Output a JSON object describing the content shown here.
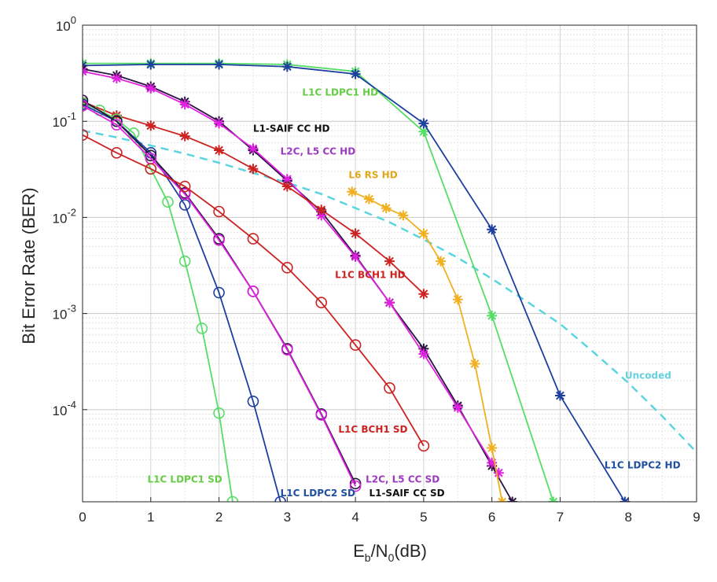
{
  "chart_data": {
    "type": "line",
    "title": "",
    "xlabel_main": "E",
    "xlabel_sub": "b",
    "xlabel_mid": "/N",
    "xlabel_sub2": "0",
    "xlabel_tail": "(dB)",
    "ylabel": "Bit Error Rate (BER)",
    "xlim": [
      0,
      9
    ],
    "ylim": [
      1.1e-05,
      1
    ],
    "yscale": "log",
    "grid": true,
    "x_ticks": [
      "0",
      "1",
      "2",
      "3",
      "4",
      "5",
      "6",
      "7",
      "8",
      "9"
    ],
    "y_ticks": [
      {
        "base": "10",
        "exp": "0",
        "value": 1
      },
      {
        "base": "10",
        "exp": "-1",
        "value": 0.1
      },
      {
        "base": "10",
        "exp": "-2",
        "value": 0.01
      },
      {
        "base": "10",
        "exp": "-3",
        "value": 0.001
      },
      {
        "base": "10",
        "exp": "-4",
        "value": 0.0001
      }
    ],
    "series": [
      {
        "name": "Uncoded",
        "color": "#5bd5e0",
        "dashed": true,
        "marker": "none",
        "x": [
          0,
          0.5,
          1,
          1.5,
          2,
          2.5,
          3,
          3.5,
          4,
          4.5,
          5,
          5.5,
          6,
          6.5,
          7,
          7.5,
          8,
          8.5,
          9
        ],
        "y": [
          0.08,
          0.068,
          0.056,
          0.046,
          0.037,
          0.029,
          0.023,
          0.0175,
          0.0125,
          0.0089,
          0.0059,
          0.0038,
          0.0023,
          0.00135,
          0.00078,
          0.00039,
          0.00019,
          8.5e-05,
          3.6e-05
        ]
      },
      {
        "name": "L1C LDPC1 HD",
        "color": "#55dd66",
        "marker": "star",
        "x": [
          0,
          1,
          2,
          3,
          4,
          5,
          6,
          6.9
        ],
        "y": [
          0.4,
          0.4,
          0.4,
          0.39,
          0.33,
          0.078,
          0.00095,
          1.1e-05
        ]
      },
      {
        "name": "L1C LDPC2 HD",
        "color": "#1f3fa0",
        "marker": "star",
        "x": [
          0,
          1,
          2,
          3,
          4,
          5,
          6,
          7,
          7.95
        ],
        "y": [
          0.38,
          0.39,
          0.39,
          0.37,
          0.31,
          0.095,
          0.0075,
          0.00014,
          1.1e-05
        ]
      },
      {
        "name": "L1-SAIF CC HD",
        "color": "#2a1540",
        "marker": "star",
        "x": [
          0,
          0.5,
          1,
          1.5,
          2,
          2.5,
          3,
          3.5,
          4,
          4.5,
          5,
          5.5,
          6,
          6.3
        ],
        "y": [
          0.35,
          0.3,
          0.23,
          0.16,
          0.1,
          0.05,
          0.024,
          0.0115,
          0.004,
          0.0013,
          0.00043,
          0.00011,
          2.6e-05,
          1.1e-05
        ]
      },
      {
        "name": "L2C, L5 CC HD",
        "color": "#e020e0",
        "marker": "star",
        "x": [
          0,
          0.5,
          1,
          1.5,
          2,
          2.5,
          3,
          3.5,
          4,
          4.5,
          5,
          5.5,
          6,
          6.1
        ],
        "y": [
          0.33,
          0.28,
          0.22,
          0.15,
          0.095,
          0.052,
          0.025,
          0.0105,
          0.0039,
          0.0013,
          0.00038,
          0.000105,
          2.8e-05,
          2.2e-05
        ]
      },
      {
        "name": "L1C BCH1 HD",
        "color": "#cc2222",
        "marker": "star",
        "x": [
          0,
          0.5,
          1,
          1.5,
          2,
          2.5,
          3,
          3.5,
          4,
          4.5,
          5
        ],
        "y": [
          0.16,
          0.115,
          0.09,
          0.07,
          0.05,
          0.032,
          0.021,
          0.012,
          0.0068,
          0.0035,
          0.0016
        ]
      },
      {
        "name": "L6 RS HD",
        "color": "#f0b020",
        "marker": "star",
        "x": [
          3.95,
          4.2,
          4.45,
          4.7,
          5,
          5.25,
          5.5,
          5.75,
          6,
          6.15
        ],
        "y": [
          0.0185,
          0.0155,
          0.0125,
          0.0105,
          0.0068,
          0.0035,
          0.0014,
          0.0003,
          4e-05,
          1.1e-05
        ]
      },
      {
        "name": "L1C LDPC1 SD",
        "color": "#55dd66",
        "marker": "circle",
        "x": [
          0,
          0.25,
          0.5,
          0.75,
          1,
          1.25,
          1.5,
          1.75,
          2,
          2.2
        ],
        "y": [
          0.155,
          0.13,
          0.105,
          0.075,
          0.032,
          0.0145,
          0.0035,
          0.0007,
          9.2e-05,
          1.1e-05
        ]
      },
      {
        "name": "L1C LDPC2 SD",
        "color": "#1f3fa0",
        "marker": "circle",
        "x": [
          0,
          0.5,
          1,
          1.5,
          2,
          2.5,
          2.9
        ],
        "y": [
          0.15,
          0.1,
          0.047,
          0.0135,
          0.00165,
          0.000122,
          1.1e-05
        ]
      },
      {
        "name": "L1-SAIF CC SD",
        "color": "#2a1540",
        "marker": "circle",
        "x": [
          0,
          0.5,
          1,
          1.5,
          2,
          2.5,
          3,
          3.5,
          4
        ],
        "y": [
          0.165,
          0.1,
          0.044,
          0.018,
          0.006,
          0.0017,
          0.00043,
          9e-05,
          1.7e-05
        ]
      },
      {
        "name": "L2C, L5 CC SD",
        "color": "#e020e0",
        "marker": "circle",
        "x": [
          0,
          0.5,
          1,
          1.5,
          2,
          2.5,
          3,
          3.5,
          4
        ],
        "y": [
          0.145,
          0.092,
          0.041,
          0.0175,
          0.0058,
          0.0017,
          0.00042,
          8.8e-05,
          1.6e-05
        ]
      },
      {
        "name": "L1C BCH1 SD",
        "color": "#cc2222",
        "marker": "circle",
        "x": [
          0,
          0.5,
          1,
          1.5,
          2,
          2.5,
          3,
          3.5,
          4,
          4.5,
          5
        ],
        "y": [
          0.072,
          0.047,
          0.032,
          0.021,
          0.0115,
          0.006,
          0.003,
          0.0013,
          0.00047,
          0.000168,
          4.2e-05
        ]
      }
    ],
    "annotations": [
      {
        "text": "L1C LDPC1 HD",
        "color": "#66cc44",
        "x": 3.22,
        "y": 0.185
      },
      {
        "text": "L1-SAIF CC HD",
        "color": "#111111",
        "x": 2.5,
        "y": 0.078
      },
      {
        "text": "L2C, L5 CC HD",
        "color": "#9b3bbf",
        "x": 2.9,
        "y": 0.045
      },
      {
        "text": "L6 RS HD",
        "color": "#e0a818",
        "x": 3.9,
        "y": 0.0255
      },
      {
        "text": "L1C BCH1 HD",
        "color": "#cc2222",
        "x": 3.7,
        "y": 0.00235
      },
      {
        "text": "Uncoded",
        "color": "#66d0dd",
        "x": 7.95,
        "y": 0.00021
      },
      {
        "text": "L1C BCH1 SD",
        "color": "#cc2222",
        "x": 3.75,
        "y": 5.8e-05
      },
      {
        "text": "L1C LDPC1 SD",
        "color": "#66cc44",
        "x": 0.95,
        "y": 1.75e-05
      },
      {
        "text": "L1C LDPC2 HD",
        "color": "#1f4fa0",
        "x": 7.65,
        "y": 2.45e-05
      },
      {
        "text": "L2C, L5 CC SD",
        "color": "#9b3bbf",
        "x": 4.15,
        "y": 1.75e-05
      },
      {
        "text": "L1C LDPC2 SD",
        "color": "#1f4fa0",
        "x": 2.9,
        "y": 1.25e-05
      },
      {
        "text": "L1-SAIF CC SD",
        "color": "#111111",
        "x": 4.2,
        "y": 1.25e-05
      }
    ]
  }
}
